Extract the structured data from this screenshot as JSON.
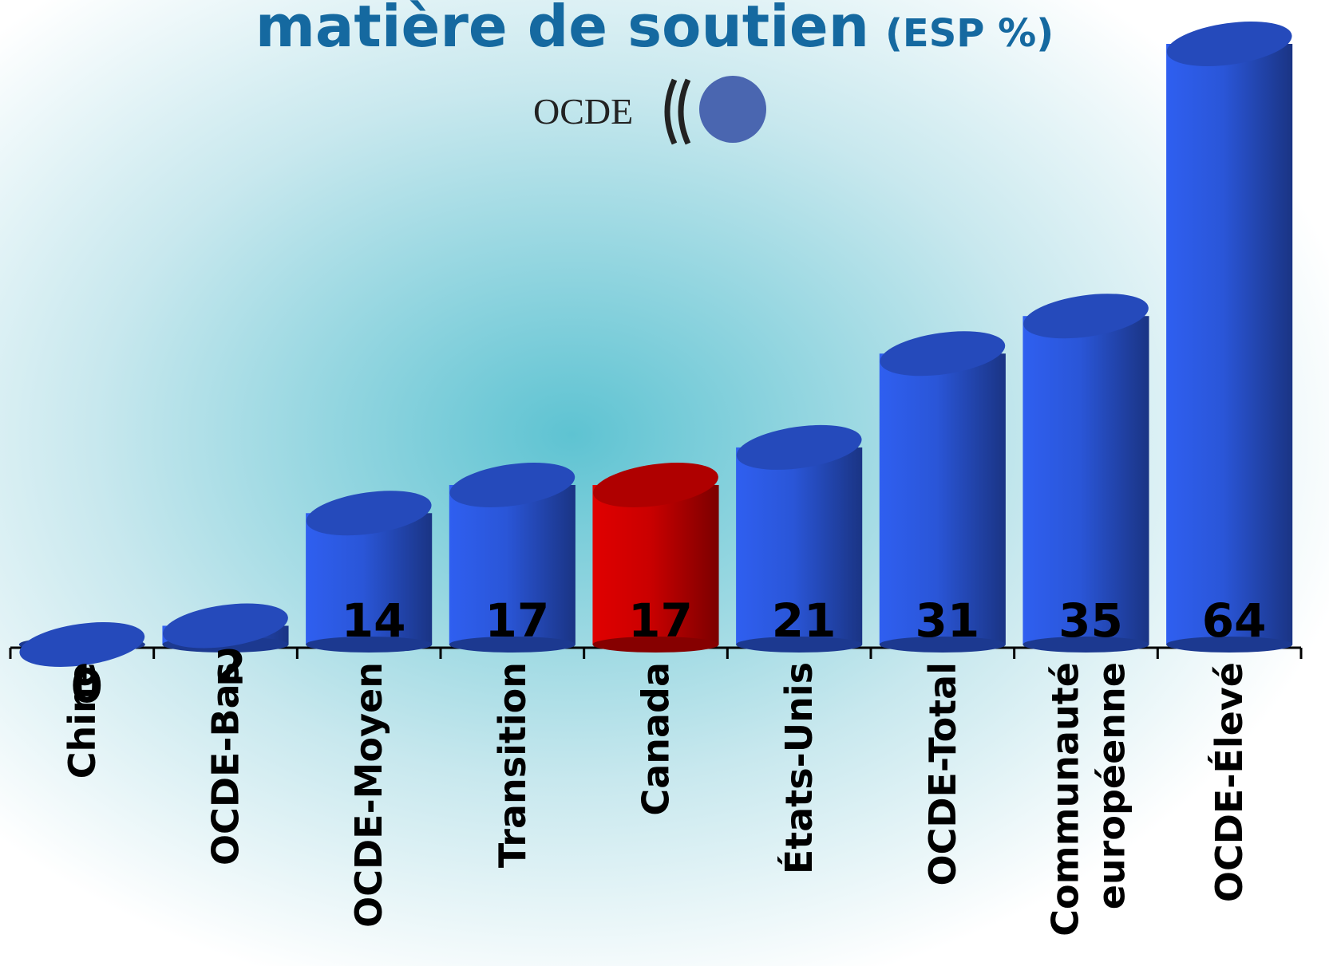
{
  "chart_data": {
    "type": "bar3d",
    "title": "matière de soutien",
    "subtitle": "(ESP %)",
    "logo": "OCDE",
    "categories": [
      "Chine",
      "OCDE-Bas",
      "OCDE-Moyen",
      "Transition",
      "Canada",
      "États-Unis",
      "OCDE-Total",
      "Communauté européenne",
      "OCDE-Élevé"
    ],
    "values": [
      0,
      2,
      14,
      17,
      17,
      21,
      31,
      35,
      64
    ],
    "colors": [
      "#2f5ff0",
      "#2f5ff0",
      "#2f5ff0",
      "#2f5ff0",
      "#e00000",
      "#2f5ff0",
      "#2f5ff0",
      "#2f5ff0",
      "#2f5ff0"
    ]
  }
}
